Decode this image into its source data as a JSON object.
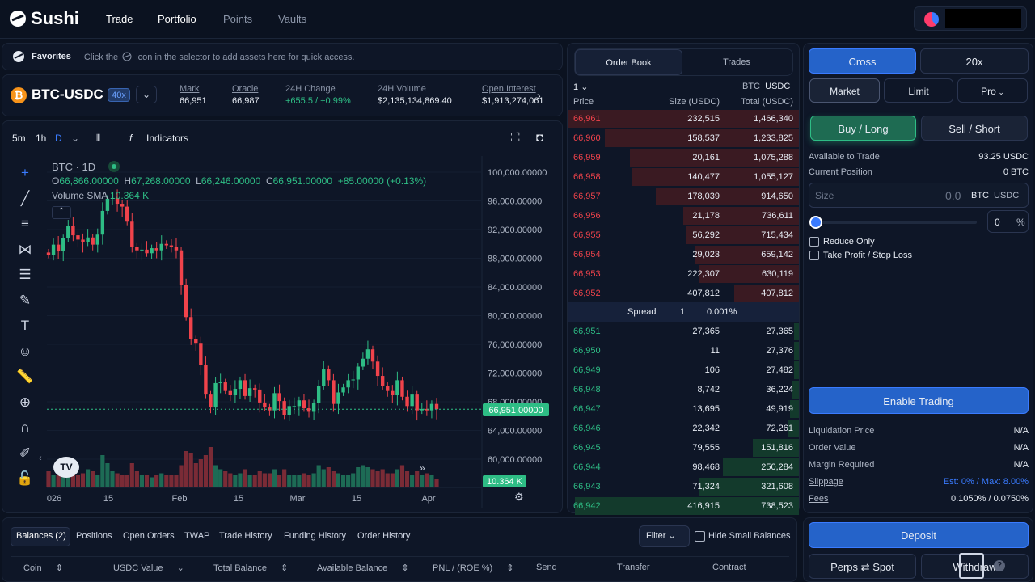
{
  "nav": {
    "brand": "Sushi",
    "links": [
      "Trade",
      "Portfolio",
      "Points",
      "Vaults"
    ]
  },
  "favorites": {
    "title": "Favorites",
    "hint_pre": "Click the",
    "hint_post": "icon in the selector to add assets here for quick access."
  },
  "market": {
    "pair": "BTC-USDC",
    "leverage": "40x",
    "stats": [
      {
        "label": "Mark",
        "value": "66,951"
      },
      {
        "label": "Oracle",
        "value": "66,987"
      },
      {
        "label": "24H Change",
        "value": "+655.5 / +0.99%"
      },
      {
        "label": "24H Volume",
        "value": "$2,135,134,869.40"
      },
      {
        "label": "Open Interest",
        "value": "$1,913,274,061"
      }
    ]
  },
  "chart_toolbar": {
    "intervals": [
      "5m",
      "1h",
      "D"
    ],
    "indicators": "Indicators"
  },
  "chart_data": {
    "type": "candlestick",
    "symbol": "BTC · 1D",
    "ohlc_label": "O66,866.00000  H67,268.00000  L66,246.00000  C66,951.00000  +85.00000 (+0.13%)",
    "ohlc": {
      "O": "66,866.00000",
      "H": "67,268.00000",
      "L": "66,246.00000",
      "C": "66,951.00000",
      "change": "+85.00000 (+0.13%)"
    },
    "volume_label": "Volume SMA",
    "volume_value": "10.364 K",
    "y_ticks": [
      "100,000.00000",
      "96,000.00000",
      "92,000.00000",
      "88,000.00000",
      "84,000.00000",
      "80,000.00000",
      "76,000.00000",
      "72,000.00000",
      "68,000.00000",
      "64,000.00000",
      "60,000.00000"
    ],
    "y_tick_values": [
      100000,
      96000,
      92000,
      88000,
      84000,
      80000,
      76000,
      72000,
      68000,
      64000,
      60000
    ],
    "ylim": [
      57000,
      101000
    ],
    "last_price": "66,951.00000",
    "last_price_value": 66951,
    "x_ticks": [
      "026",
      "15",
      "Feb",
      "15",
      "Mar",
      "15",
      "Apr"
    ],
    "closes": [
      88500,
      89900,
      89000,
      90800,
      92500,
      91200,
      90600,
      90200,
      90900,
      89900,
      91300,
      94600,
      96300,
      96400,
      95600,
      95200,
      93100,
      89600,
      89100,
      89200,
      88700,
      89400,
      89100,
      90000,
      89800,
      89600,
      89100,
      84300,
      79800,
      76700,
      76200,
      73100,
      69000,
      67200,
      70600,
      70700,
      69500,
      68900,
      69800,
      71000,
      68800,
      69900,
      69700,
      67900,
      67200,
      66800,
      69200,
      68100,
      66100,
      67400,
      67400,
      68200,
      67100,
      66600,
      67800,
      70200,
      72500,
      71000,
      67700,
      69300,
      70000,
      71000,
      71100,
      72900,
      74000,
      75300,
      73600,
      71600,
      70200,
      69500,
      68900,
      71000,
      68700,
      67400,
      69000,
      66800,
      67000,
      66800,
      67700,
      66951
    ],
    "volume_levels": [
      0.4,
      0.3,
      0.3,
      0.25,
      0.5,
      0.55,
      0.3,
      0.35,
      0.45,
      0.4,
      0.3,
      0.8,
      0.6,
      0.4,
      0.35,
      0.3,
      0.3,
      0.6,
      0.4,
      0.3,
      0.3,
      0.25,
      0.3,
      0.35,
      0.3,
      0.3,
      0.3,
      0.55,
      0.9,
      0.85,
      0.6,
      0.7,
      0.8,
      1.0,
      0.55,
      0.45,
      0.4,
      0.35,
      0.3,
      0.35,
      0.45,
      0.3,
      0.3,
      0.4,
      0.35,
      0.35,
      0.45,
      0.3,
      0.45,
      0.3,
      0.3,
      0.3,
      0.35,
      0.3,
      0.35,
      0.55,
      0.45,
      0.5,
      0.4,
      0.35,
      0.3,
      0.3,
      0.35,
      0.5,
      0.55,
      0.5,
      0.45,
      0.4,
      0.45,
      0.35,
      0.35,
      0.45,
      0.55,
      0.4,
      0.3,
      0.4,
      0.3,
      0.35,
      0.3,
      0.2
    ],
    "volume_tag": "10.364 K"
  },
  "orderbook": {
    "tabs": [
      "Order Book",
      "Trades"
    ],
    "grouping": "1",
    "asset": "BTC",
    "quote": "USDC",
    "headers": [
      "Price",
      "Size (USDC)",
      "Total (USDC)"
    ],
    "asks": [
      {
        "price": "66,961",
        "size": "232,515",
        "total": "1,466,340",
        "depth": 1.0
      },
      {
        "price": "66,960",
        "size": "158,537",
        "total": "1,233,825",
        "depth": 0.84
      },
      {
        "price": "66,959",
        "size": "20,161",
        "total": "1,075,288",
        "depth": 0.73
      },
      {
        "price": "66,958",
        "size": "140,477",
        "total": "1,055,127",
        "depth": 0.72
      },
      {
        "price": "66,957",
        "size": "178,039",
        "total": "914,650",
        "depth": 0.62
      },
      {
        "price": "66,956",
        "size": "21,178",
        "total": "736,611",
        "depth": 0.5
      },
      {
        "price": "66,955",
        "size": "56,292",
        "total": "715,434",
        "depth": 0.49
      },
      {
        "price": "66,954",
        "size": "29,023",
        "total": "659,142",
        "depth": 0.45
      },
      {
        "price": "66,953",
        "size": "222,307",
        "total": "630,119",
        "depth": 0.43
      },
      {
        "price": "66,952",
        "size": "407,812",
        "total": "407,812",
        "depth": 0.28
      }
    ],
    "spread": {
      "label": "Spread",
      "value": "1",
      "pct": "0.001%"
    },
    "bids": [
      {
        "price": "66,951",
        "size": "27,365",
        "total": "27,365",
        "depth": 0.02
      },
      {
        "price": "66,950",
        "size": "11",
        "total": "27,376",
        "depth": 0.02
      },
      {
        "price": "66,949",
        "size": "106",
        "total": "27,482",
        "depth": 0.02
      },
      {
        "price": "66,948",
        "size": "8,742",
        "total": "36,224",
        "depth": 0.03
      },
      {
        "price": "66,947",
        "size": "13,695",
        "total": "49,919",
        "depth": 0.04
      },
      {
        "price": "66,946",
        "size": "22,342",
        "total": "72,261",
        "depth": 0.05
      },
      {
        "price": "66,945",
        "size": "79,555",
        "total": "151,816",
        "depth": 0.2
      },
      {
        "price": "66,944",
        "size": "98,468",
        "total": "250,284",
        "depth": 0.33
      },
      {
        "price": "66,943",
        "size": "71,324",
        "total": "321,608",
        "depth": 0.43
      },
      {
        "price": "66,942",
        "size": "416,915",
        "total": "738,523",
        "depth": 0.97
      }
    ]
  },
  "trade": {
    "margin_mode": "Cross",
    "leverage": "20x",
    "order_types": [
      "Market",
      "Limit",
      "Pro"
    ],
    "buy": "Buy / Long",
    "sell": "Sell / Short",
    "available_label": "Available to Trade",
    "available_value": "93.25 USDC",
    "position_label": "Current Position",
    "position_value": "0 BTC",
    "size_placeholder": "Size",
    "size_value": "0.0",
    "size_unit_1": "BTC",
    "size_unit_2": "USDC",
    "pct_value": "0",
    "pct_unit": "%",
    "reduce_only": "Reduce Only",
    "tpsl": "Take Profit / Stop Loss",
    "enable": "Enable Trading",
    "info": [
      {
        "label": "Liquidation Price",
        "value": "N/A"
      },
      {
        "label": "Order Value",
        "value": "N/A"
      },
      {
        "label": "Margin Required",
        "value": "N/A"
      },
      {
        "label": "Slippage",
        "value": "Est: 0% / Max: 8.00%"
      },
      {
        "label": "Fees",
        "value": "0.1050% / 0.0750%"
      }
    ],
    "deposit": "Deposit",
    "perps_spot_left": "Perps",
    "perps_spot_right": "Spot",
    "withdraw": "Withdraw"
  },
  "bottom": {
    "tabs": [
      "Balances (2)",
      "Positions",
      "Open Orders",
      "TWAP",
      "Trade History",
      "Funding History",
      "Order History"
    ],
    "filter": "Filter",
    "hide_small": "Hide Small Balances",
    "columns": [
      "Coin",
      "USDC Value",
      "Total Balance",
      "Available Balance",
      "PNL / (ROE %)",
      "Send",
      "Transfer",
      "Contract"
    ]
  },
  "colors": {
    "green": "#2ebd85",
    "red": "#f0434b",
    "accent": "#2563c9"
  }
}
